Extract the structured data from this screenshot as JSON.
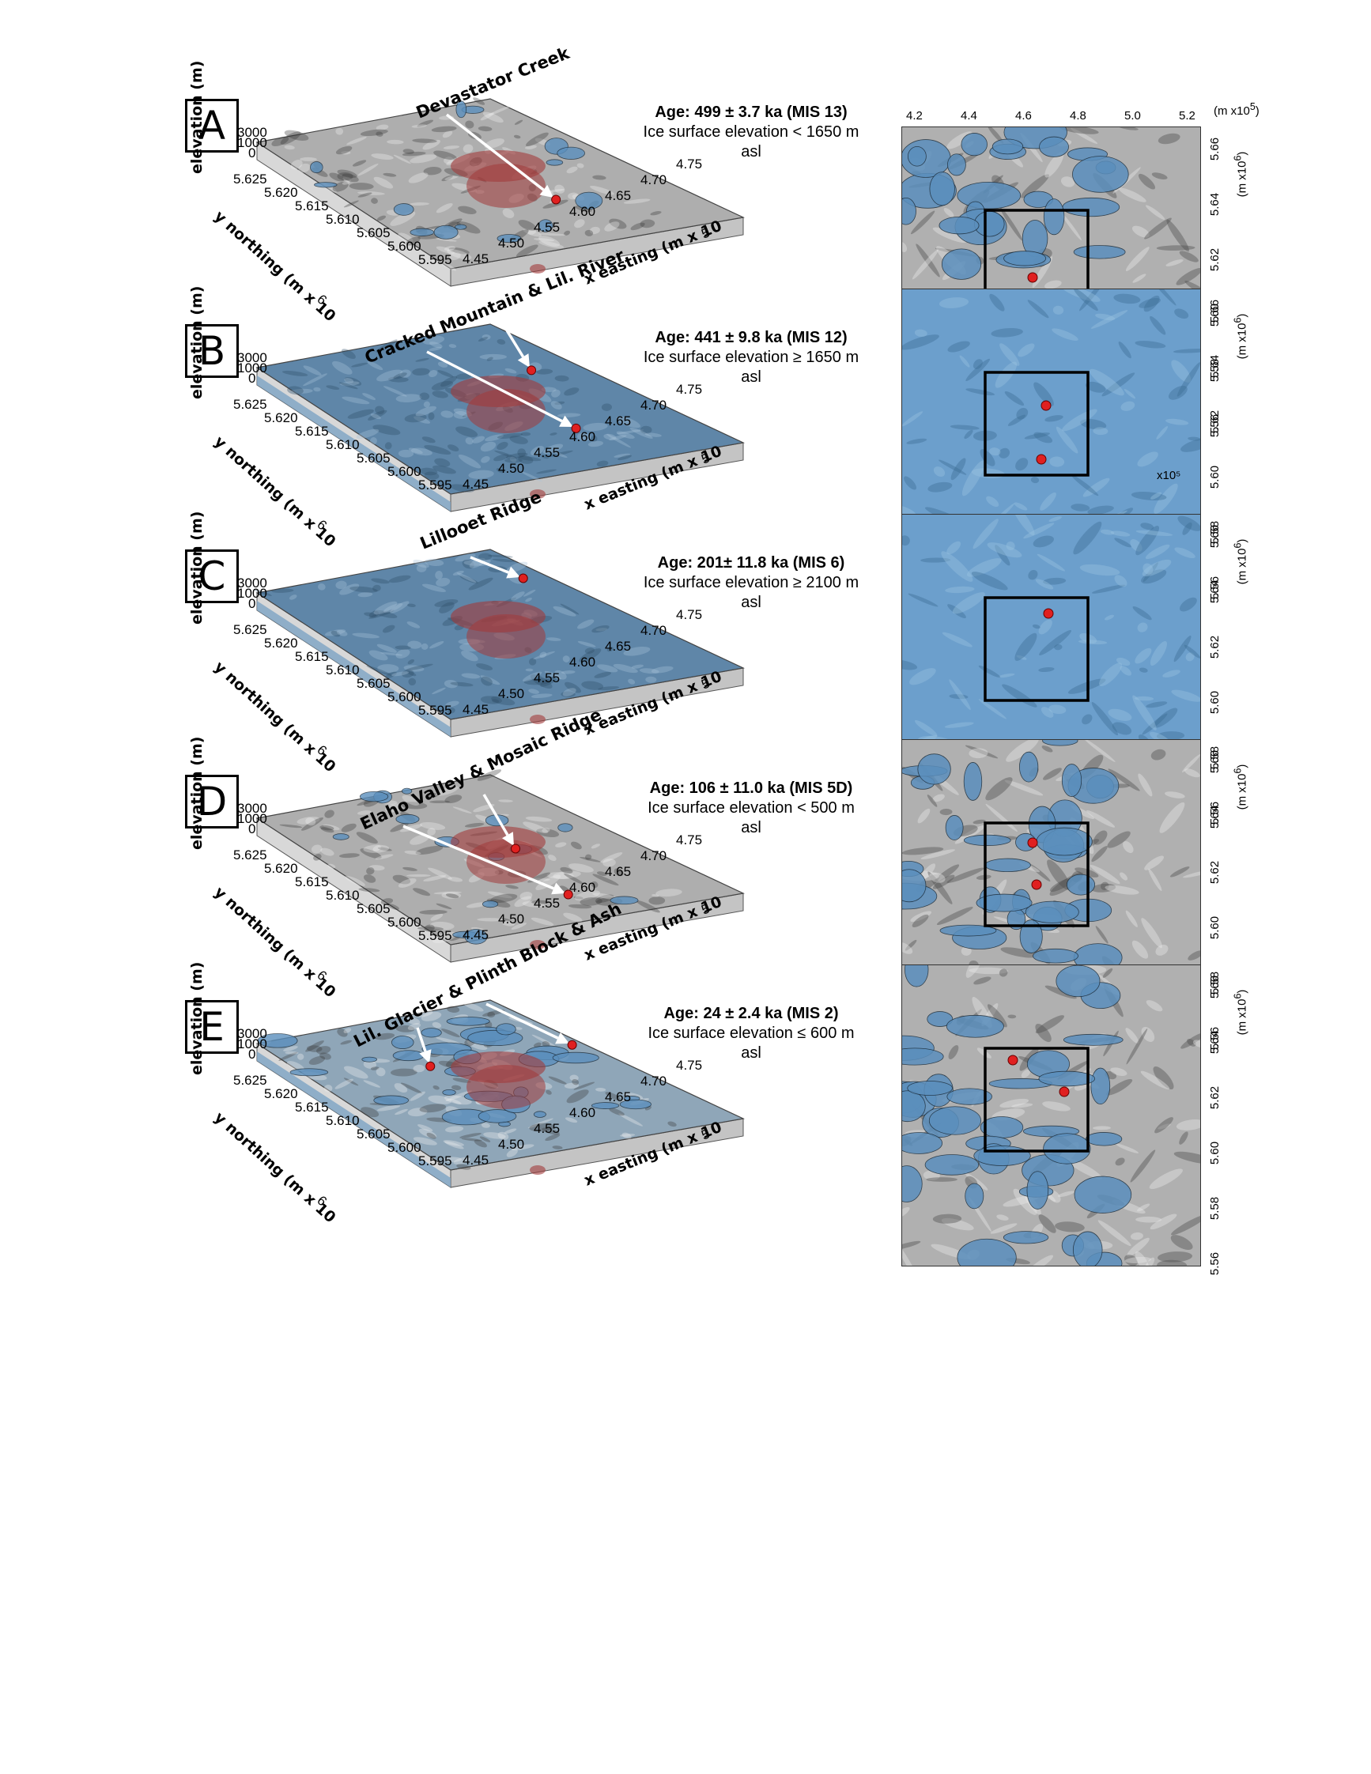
{
  "panels": [
    {
      "letter": "A",
      "location": "Devastator Creek",
      "age": "Age: 499 ± 3.7 ka (MIS 13)",
      "ice_line1": "Ice surface elevation < 1650 m",
      "ice_line2": "asl",
      "surface": "rock",
      "markers3d": 1,
      "markers_map": 1
    },
    {
      "letter": "B",
      "location": "Cracked Mountain & Lil. River",
      "age": "Age: 441 ± 9.8 ka (MIS 12)",
      "ice_line1": "Ice surface elevation ≥ 1650 m",
      "ice_line2": "asl",
      "surface": "ice",
      "markers3d": 2,
      "markers_map": 2,
      "map_extra": "x10⁵"
    },
    {
      "letter": "C",
      "location": "Lillooet Ridge",
      "age": "Age: 201± 11.8 ka (MIS 6)",
      "ice_line1": "Ice surface elevation ≥ 2100 m",
      "ice_line2": "asl",
      "surface": "ice",
      "markers3d": 1,
      "markers_map": 1
    },
    {
      "letter": "D",
      "location": "Elaho Valley & Mosaic Ridge",
      "age": "Age: 106 ± 11.0 ka (MIS 5D)",
      "ice_line1": "Ice surface elevation < 500 m",
      "ice_line2": "asl",
      "surface": "rock",
      "markers3d": 2,
      "markers_map": 2
    },
    {
      "letter": "E",
      "location": "Lil. Glacier & Plinth Block & Ash",
      "age": "Age: 24 ± 2.4 ka (MIS 2)",
      "ice_line1": "Ice surface elevation ≤ 600 m",
      "ice_line2": "asl",
      "surface": "mixed",
      "markers3d": 2,
      "markers_map": 2
    }
  ],
  "axes3d": {
    "elevation_label": "elevation (m)",
    "elevation_ticks": [
      "3000",
      "1000",
      "0"
    ],
    "y_label": "y northing (m x 10",
    "y_exp": "6",
    "y_ticks": [
      "5.625",
      "5.620",
      "5.615",
      "5.610",
      "5.605",
      "5.600",
      "5.595"
    ],
    "x_label": "x easting (m x 10",
    "x_exp": "5",
    "x_ticks": [
      "4.45",
      "4.50",
      "4.55",
      "4.60",
      "4.65",
      "4.70",
      "4.75"
    ]
  },
  "map_axes": {
    "top_ticks": [
      "4.2",
      "4.4",
      "4.6",
      "4.8",
      "5.0",
      "5.2"
    ],
    "top_unit": "(m x10",
    "top_unit_exp": "5",
    "right_ticks": [
      "5.66",
      "5.64",
      "5.62",
      "5.60",
      "5.58",
      "5.56"
    ],
    "right_unit": "(m x10",
    "right_unit_exp": "6"
  },
  "colors": {
    "ice": "#5b8fbd",
    "rock": "#b5b5b5",
    "source": "#a23a3a",
    "marker": "#e02020"
  }
}
